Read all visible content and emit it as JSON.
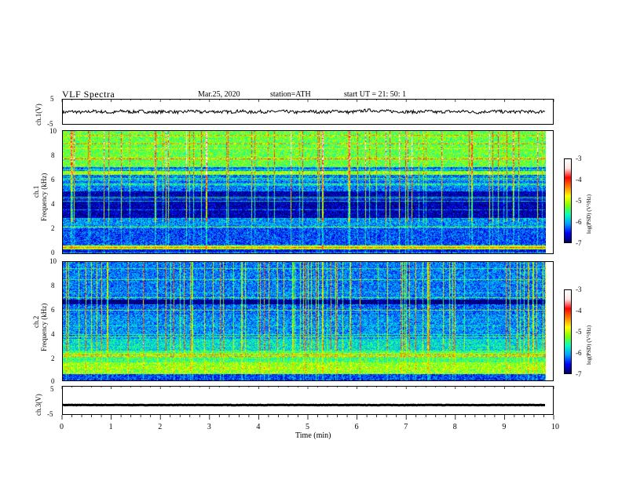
{
  "header": {
    "title": "VLF  Spectra",
    "date": "Mar.25, 2020",
    "station": "station=ATH",
    "start": "start  UT  =   21: 50: 1"
  },
  "colorbar": {
    "label": "log(PSD) (V²/Hz)",
    "ticks": [
      "-3",
      "-4",
      "-5",
      "-6",
      "-7"
    ],
    "stops": [
      "#000060",
      "#0000ff",
      "#00a0ff",
      "#00ffc0",
      "#80ff00",
      "#ffff00",
      "#ff8000",
      "#ff0000",
      "#ffe0e0",
      "#ffffff"
    ]
  },
  "chart_data": [
    {
      "type": "line",
      "panel": "ch1-waveform",
      "ylabel": "ch.1(V)",
      "ylim": [
        -5,
        5
      ],
      "yticks": [
        "5",
        "-5"
      ],
      "xlim": [
        0,
        10
      ],
      "series": [
        {
          "values": [
            -0.2,
            0.1,
            -0.3,
            0.2,
            0.0,
            -0.4,
            0.3,
            -0.1,
            0.2,
            -0.2,
            0.0,
            0.1,
            -0.3,
            0.4,
            -0.2,
            0.1,
            0.0,
            -0.1,
            0.3,
            -0.2,
            0.1,
            -0.1,
            0.2,
            0.0,
            -0.3,
            0.2,
            -0.1,
            0.0,
            0.3,
            -0.2,
            0.1,
            0.6,
            0.4,
            0.2,
            0.1,
            0.0,
            -0.1,
            0.2,
            -0.2,
            0.1,
            0.0,
            0.2,
            -0.3,
            0.1,
            0.2,
            -0.1,
            0.0,
            0.1,
            -0.2,
            0.3
          ]
        }
      ],
      "color": "#000000"
    },
    {
      "type": "heatmap",
      "panel": "ch1-spectrogram",
      "ylabel": "ch.1",
      "ylabel2": "Frequency  (kHz)",
      "yticks": [
        "10",
        "8",
        "6",
        "4",
        "2",
        "0"
      ],
      "ylim": [
        0,
        10
      ],
      "xlim": [
        0,
        10
      ],
      "zlim": [
        -7,
        -3
      ]
    },
    {
      "type": "heatmap",
      "panel": "ch2-spectrogram",
      "ylabel": "ch.2",
      "ylabel2": "Frequency  (kHz)",
      "yticks": [
        "10",
        "8",
        "6",
        "4",
        "2",
        "0"
      ],
      "ylim": [
        0,
        10
      ],
      "xlim": [
        0,
        10
      ],
      "zlim": [
        -7,
        -3
      ]
    },
    {
      "type": "line",
      "panel": "ch3-waveform",
      "ylabel": "ch.3(V)",
      "ylim": [
        -5,
        5
      ],
      "yticks": [
        "5",
        "-5"
      ],
      "xlim": [
        0,
        10
      ],
      "series": [
        {
          "values": [
            -1.6,
            -1.6,
            -1.6,
            -1.6,
            -1.6,
            -1.6
          ]
        }
      ],
      "color": "#000000"
    }
  ],
  "xaxis": {
    "label": "Time  (min)",
    "ticks": [
      "0",
      "1",
      "2",
      "3",
      "4",
      "5",
      "6",
      "7",
      "8",
      "9",
      "10"
    ]
  }
}
